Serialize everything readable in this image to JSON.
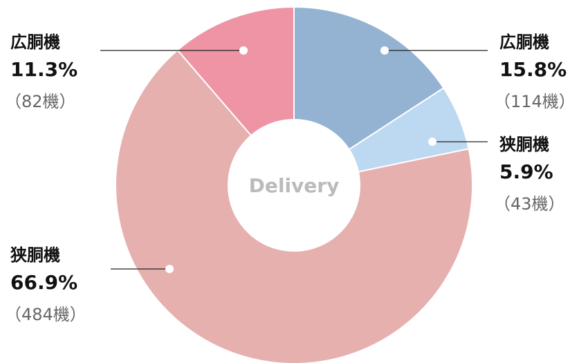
{
  "chart_data": {
    "type": "donut",
    "center_label": "Delivery",
    "categories": [
      "広胴機",
      "狭胴機",
      "狭胴機",
      "広胴機"
    ],
    "values": [
      15.8,
      5.9,
      66.9,
      11.3
    ],
    "value_labels": [
      "15.8%",
      "5.9%",
      "66.9%",
      "11.3%"
    ],
    "counts": [
      114,
      43,
      484,
      82
    ],
    "count_labels": [
      "（114機）",
      "（43機）",
      "（484機）",
      "（82機）"
    ],
    "colors": [
      "#94b2d1",
      "#bcd9f1",
      "#e6b0ae",
      "#ef94a5"
    ]
  }
}
